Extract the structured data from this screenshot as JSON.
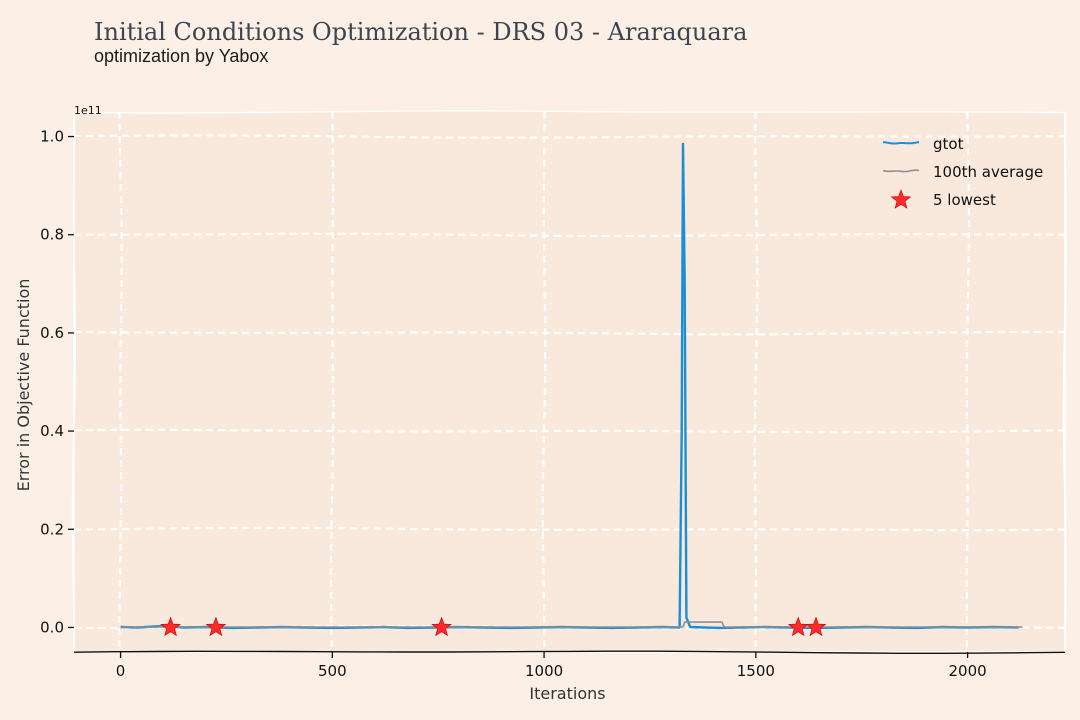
{
  "header": {
    "title": "Initial Conditions Optimization - DRS 03 - Araraquara",
    "subtitle": "optimization by Yabox"
  },
  "chart_data": {
    "type": "line",
    "xlabel": "Iterations",
    "ylabel": "Error in Objective Function",
    "y_offset_label": "1e11",
    "xlim": [
      -110,
      2230
    ],
    "ylim": [
      -0.05,
      1.05
    ],
    "x_ticks": [
      0,
      500,
      1000,
      1500,
      2000
    ],
    "y_ticks": [
      0.0,
      0.2,
      0.4,
      0.6,
      0.8,
      1.0
    ],
    "x_tick_labels": [
      "0",
      "500",
      "1000",
      "1500",
      "2000"
    ],
    "y_tick_labels": [
      "0.0",
      "0.2",
      "0.4",
      "0.6",
      "0.8",
      "1.0"
    ],
    "grid": true,
    "legend_position": "top-right",
    "colors": {
      "background": "#fcf0e6",
      "plot_area": "#f9e8dc",
      "grid": "#ffffff",
      "gtot": "#1a8fd6",
      "average": "#8a9097",
      "lowest": "#ff2a2a"
    },
    "series": [
      {
        "name": "gtot",
        "kind": "line",
        "x": [
          0,
          40,
          80,
          110,
          150,
          200,
          260,
          320,
          380,
          440,
          500,
          560,
          620,
          680,
          740,
          800,
          860,
          920,
          980,
          1040,
          1100,
          1160,
          1220,
          1280,
          1320,
          1325,
          1328,
          1332,
          1336,
          1345,
          1380,
          1420,
          1460,
          1520,
          1580,
          1640,
          1700,
          1760,
          1820,
          1880,
          1940,
          2000,
          2060,
          2120
        ],
        "y": [
          0.001,
          0.0,
          0.002,
          0.003,
          0.0,
          0.001,
          -0.001,
          0.0,
          0.001,
          0.0,
          -0.001,
          0.0,
          0.001,
          -0.001,
          0.0,
          0.001,
          0.0,
          -0.001,
          0.0,
          0.001,
          0.0,
          -0.001,
          0.0,
          0.001,
          0.0,
          0.4,
          0.985,
          0.7,
          0.02,
          0.001,
          0.0,
          -0.001,
          0.0,
          0.001,
          0.0,
          -0.001,
          0.0,
          0.001,
          0.0,
          -0.001,
          0.001,
          0.0,
          0.001,
          0.0
        ]
      },
      {
        "name": "100th average",
        "kind": "line",
        "x": [
          0,
          100,
          200,
          300,
          400,
          500,
          600,
          700,
          800,
          900,
          1000,
          1100,
          1200,
          1300,
          1328,
          1332,
          1380,
          1420,
          1425,
          1500,
          1600,
          1700,
          1800,
          1900,
          2000,
          2100,
          2130
        ],
        "y": [
          0.001,
          0.001,
          0.001,
          0.001,
          0.001,
          0.001,
          0.001,
          0.001,
          0.001,
          0.001,
          0.001,
          0.001,
          0.001,
          0.001,
          0.001,
          0.011,
          0.011,
          0.011,
          0.001,
          0.001,
          0.001,
          0.001,
          0.001,
          0.001,
          0.001,
          0.001,
          0.001
        ]
      },
      {
        "name": "5 lowest",
        "kind": "scatter",
        "marker": "star",
        "x": [
          118,
          225,
          758,
          1600,
          1642
        ],
        "y": [
          0.0,
          0.0,
          0.0,
          0.0,
          0.0
        ]
      }
    ]
  }
}
